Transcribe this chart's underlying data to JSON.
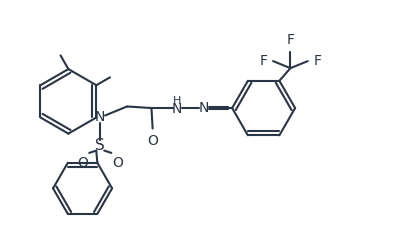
{
  "background_color": "#ffffff",
  "line_color": "#2a3545",
  "line_width": 1.5,
  "font_size": 9.0,
  "figsize": [
    3.95,
    2.46
  ],
  "dpi": 100,
  "xlim": [
    0.0,
    10.0
  ],
  "ylim": [
    0.3,
    6.3
  ]
}
